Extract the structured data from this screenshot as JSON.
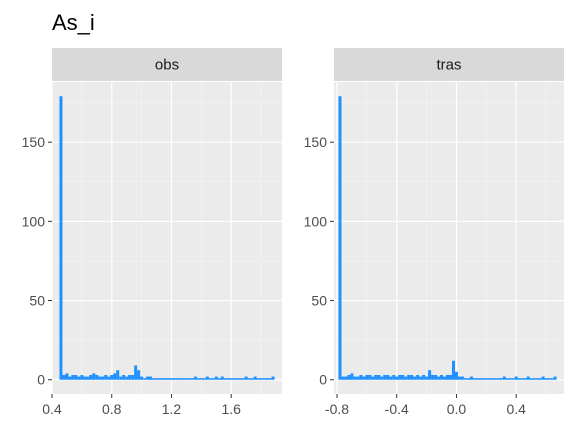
{
  "chart_data": {
    "type": "bar",
    "title": "As_i",
    "xlabel": "",
    "ylabel": "",
    "grid": true,
    "ylim": [
      -9,
      188
    ],
    "y_ticks": [
      0,
      50,
      100,
      150
    ],
    "bar_color": "#1E90FF",
    "panels": [
      {
        "strip": "obs",
        "xlim": [
          0.4,
          1.94
        ],
        "x_ticks": [
          0.4,
          0.8,
          1.2,
          1.6
        ],
        "x_tick_labels": [
          "0.4",
          "0.8",
          "1.2",
          "1.6"
        ],
        "bin_width": 0.02,
        "bins": [
          {
            "x": 0.46,
            "y": 179
          },
          {
            "x": 0.48,
            "y": 3
          },
          {
            "x": 0.5,
            "y": 4
          },
          {
            "x": 0.52,
            "y": 2
          },
          {
            "x": 0.54,
            "y": 3
          },
          {
            "x": 0.56,
            "y": 3
          },
          {
            "x": 0.58,
            "y": 2
          },
          {
            "x": 0.6,
            "y": 3
          },
          {
            "x": 0.62,
            "y": 2
          },
          {
            "x": 0.64,
            "y": 2
          },
          {
            "x": 0.66,
            "y": 3
          },
          {
            "x": 0.68,
            "y": 4
          },
          {
            "x": 0.7,
            "y": 3
          },
          {
            "x": 0.72,
            "y": 2
          },
          {
            "x": 0.74,
            "y": 2
          },
          {
            "x": 0.76,
            "y": 3
          },
          {
            "x": 0.78,
            "y": 2
          },
          {
            "x": 0.8,
            "y": 3
          },
          {
            "x": 0.82,
            "y": 4
          },
          {
            "x": 0.84,
            "y": 6
          },
          {
            "x": 0.86,
            "y": 2
          },
          {
            "x": 0.88,
            "y": 3
          },
          {
            "x": 0.9,
            "y": 2
          },
          {
            "x": 0.92,
            "y": 3
          },
          {
            "x": 0.94,
            "y": 3
          },
          {
            "x": 0.96,
            "y": 9
          },
          {
            "x": 0.98,
            "y": 6
          },
          {
            "x": 1.0,
            "y": 2
          },
          {
            "x": 1.02,
            "y": 1
          },
          {
            "x": 1.04,
            "y": 2
          },
          {
            "x": 1.06,
            "y": 2
          },
          {
            "x": 1.08,
            "y": 1
          },
          {
            "x": 1.1,
            "y": 1
          },
          {
            "x": 1.12,
            "y": 1
          },
          {
            "x": 1.14,
            "y": 1
          },
          {
            "x": 1.16,
            "y": 1
          },
          {
            "x": 1.18,
            "y": 1
          },
          {
            "x": 1.2,
            "y": 1
          },
          {
            "x": 1.22,
            "y": 1
          },
          {
            "x": 1.24,
            "y": 1
          },
          {
            "x": 1.26,
            "y": 1
          },
          {
            "x": 1.28,
            "y": 1
          },
          {
            "x": 1.3,
            "y": 1
          },
          {
            "x": 1.32,
            "y": 1
          },
          {
            "x": 1.34,
            "y": 1
          },
          {
            "x": 1.36,
            "y": 2
          },
          {
            "x": 1.38,
            "y": 1
          },
          {
            "x": 1.4,
            "y": 1
          },
          {
            "x": 1.42,
            "y": 1
          },
          {
            "x": 1.44,
            "y": 2
          },
          {
            "x": 1.46,
            "y": 1
          },
          {
            "x": 1.48,
            "y": 1
          },
          {
            "x": 1.5,
            "y": 2
          },
          {
            "x": 1.52,
            "y": 1
          },
          {
            "x": 1.54,
            "y": 2
          },
          {
            "x": 1.56,
            "y": 1
          },
          {
            "x": 1.58,
            "y": 1
          },
          {
            "x": 1.6,
            "y": 1
          },
          {
            "x": 1.62,
            "y": 1
          },
          {
            "x": 1.64,
            "y": 1
          },
          {
            "x": 1.66,
            "y": 1
          },
          {
            "x": 1.68,
            "y": 1
          },
          {
            "x": 1.7,
            "y": 2
          },
          {
            "x": 1.72,
            "y": 1
          },
          {
            "x": 1.74,
            "y": 1
          },
          {
            "x": 1.76,
            "y": 2
          },
          {
            "x": 1.78,
            "y": 1
          },
          {
            "x": 1.8,
            "y": 1
          },
          {
            "x": 1.82,
            "y": 1
          },
          {
            "x": 1.84,
            "y": 1
          },
          {
            "x": 1.86,
            "y": 1
          },
          {
            "x": 1.88,
            "y": 2
          }
        ]
      },
      {
        "strip": "tras",
        "xlim": [
          -0.82,
          0.72
        ],
        "x_ticks": [
          -0.8,
          -0.4,
          0.0,
          0.4
        ],
        "x_tick_labels": [
          "-0.8",
          "-0.4",
          "0.0",
          "0.4"
        ],
        "bin_width": 0.02,
        "bins": [
          {
            "x": -0.78,
            "y": 179
          },
          {
            "x": -0.76,
            "y": 2
          },
          {
            "x": -0.74,
            "y": 2
          },
          {
            "x": -0.72,
            "y": 3
          },
          {
            "x": -0.7,
            "y": 4
          },
          {
            "x": -0.68,
            "y": 2
          },
          {
            "x": -0.66,
            "y": 2
          },
          {
            "x": -0.64,
            "y": 3
          },
          {
            "x": -0.62,
            "y": 2
          },
          {
            "x": -0.6,
            "y": 3
          },
          {
            "x": -0.58,
            "y": 3
          },
          {
            "x": -0.56,
            "y": 2
          },
          {
            "x": -0.54,
            "y": 3
          },
          {
            "x": -0.52,
            "y": 3
          },
          {
            "x": -0.5,
            "y": 2
          },
          {
            "x": -0.48,
            "y": 3
          },
          {
            "x": -0.46,
            "y": 3
          },
          {
            "x": -0.44,
            "y": 2
          },
          {
            "x": -0.42,
            "y": 3
          },
          {
            "x": -0.4,
            "y": 2
          },
          {
            "x": -0.38,
            "y": 3
          },
          {
            "x": -0.36,
            "y": 3
          },
          {
            "x": -0.34,
            "y": 2
          },
          {
            "x": -0.32,
            "y": 3
          },
          {
            "x": -0.3,
            "y": 3
          },
          {
            "x": -0.28,
            "y": 2
          },
          {
            "x": -0.26,
            "y": 3
          },
          {
            "x": -0.24,
            "y": 2
          },
          {
            "x": -0.22,
            "y": 3
          },
          {
            "x": -0.2,
            "y": 2
          },
          {
            "x": -0.18,
            "y": 6
          },
          {
            "x": -0.16,
            "y": 3
          },
          {
            "x": -0.14,
            "y": 3
          },
          {
            "x": -0.12,
            "y": 2
          },
          {
            "x": -0.1,
            "y": 3
          },
          {
            "x": -0.08,
            "y": 2
          },
          {
            "x": -0.06,
            "y": 3
          },
          {
            "x": -0.04,
            "y": 3
          },
          {
            "x": -0.02,
            "y": 12
          },
          {
            "x": 0.0,
            "y": 5
          },
          {
            "x": 0.02,
            "y": 2
          },
          {
            "x": 0.04,
            "y": 2
          },
          {
            "x": 0.06,
            "y": 1
          },
          {
            "x": 0.08,
            "y": 1
          },
          {
            "x": 0.1,
            "y": 2
          },
          {
            "x": 0.12,
            "y": 1
          },
          {
            "x": 0.14,
            "y": 1
          },
          {
            "x": 0.16,
            "y": 1
          },
          {
            "x": 0.18,
            "y": 1
          },
          {
            "x": 0.2,
            "y": 1
          },
          {
            "x": 0.22,
            "y": 1
          },
          {
            "x": 0.24,
            "y": 1
          },
          {
            "x": 0.26,
            "y": 1
          },
          {
            "x": 0.28,
            "y": 1
          },
          {
            "x": 0.3,
            "y": 1
          },
          {
            "x": 0.32,
            "y": 2
          },
          {
            "x": 0.34,
            "y": 1
          },
          {
            "x": 0.36,
            "y": 1
          },
          {
            "x": 0.38,
            "y": 1
          },
          {
            "x": 0.4,
            "y": 2
          },
          {
            "x": 0.42,
            "y": 1
          },
          {
            "x": 0.44,
            "y": 1
          },
          {
            "x": 0.46,
            "y": 1
          },
          {
            "x": 0.48,
            "y": 2
          },
          {
            "x": 0.5,
            "y": 1
          },
          {
            "x": 0.52,
            "y": 1
          },
          {
            "x": 0.54,
            "y": 1
          },
          {
            "x": 0.56,
            "y": 1
          },
          {
            "x": 0.58,
            "y": 2
          },
          {
            "x": 0.6,
            "y": 1
          },
          {
            "x": 0.62,
            "y": 1
          },
          {
            "x": 0.64,
            "y": 1
          },
          {
            "x": 0.66,
            "y": 2
          }
        ]
      }
    ]
  }
}
